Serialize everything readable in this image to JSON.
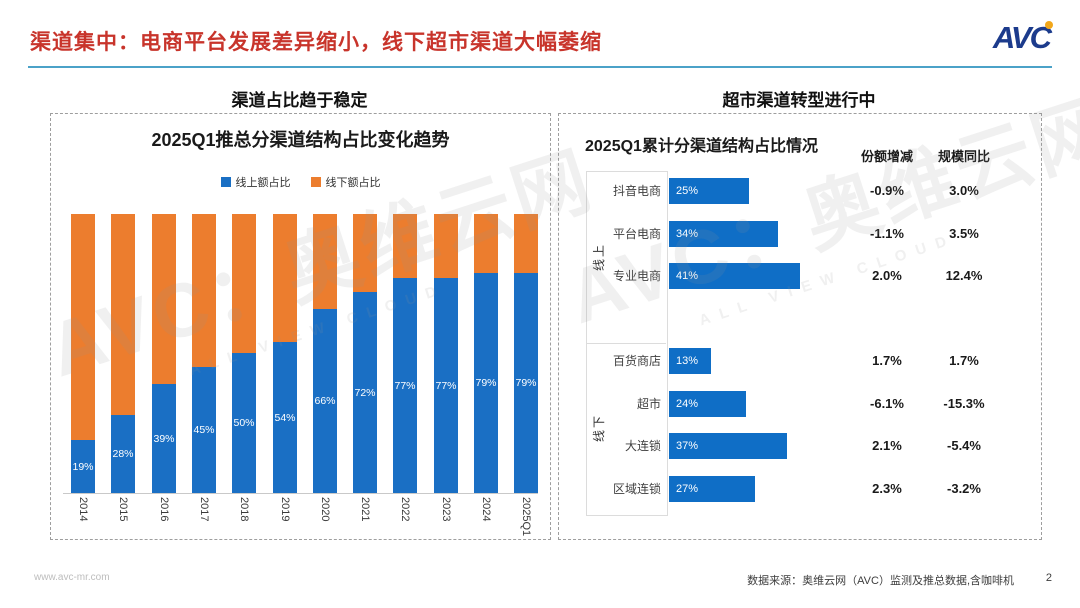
{
  "header": {
    "title": "渠道集中：电商平台发展差异缩小，线下超市渠道大幅萎缩",
    "logo_av": "AV",
    "logo_c": "C"
  },
  "sections": {
    "left": {
      "header": "渠道占比趋于稳定"
    },
    "right": {
      "header": "超市渠道转型进行中"
    }
  },
  "chart_data": [
    {
      "type": "bar",
      "stacked": true,
      "title": "2025Q1推总分渠道结构占比变化趋势",
      "categories": [
        "2014",
        "2015",
        "2016",
        "2017",
        "2018",
        "2019",
        "2020",
        "2021",
        "2022",
        "2023",
        "2024",
        "2025Q1"
      ],
      "series": [
        {
          "name": "线上额占比",
          "color": "#1a6fc4",
          "values": [
            19,
            28,
            39,
            45,
            50,
            54,
            66,
            72,
            77,
            77,
            79,
            79
          ]
        },
        {
          "name": "线下额占比",
          "color": "#ec7d2e",
          "values": [
            81,
            72,
            61,
            55,
            50,
            46,
            34,
            28,
            23,
            23,
            21,
            21
          ]
        }
      ],
      "value_labels": [
        "19%",
        "28%",
        "39%",
        "45%",
        "50%",
        "54%",
        "66%",
        "72%",
        "77%",
        "77%",
        "79%",
        "79%"
      ],
      "ylim": [
        0,
        100
      ],
      "grid": false,
      "legend_position": "top"
    },
    {
      "type": "bar",
      "orientation": "horizontal",
      "title": "2025Q1累计分渠道结构占比情况",
      "columns": [
        "份额增减",
        "规模同比"
      ],
      "bar_color": "#0f6ec6",
      "xlim": [
        0,
        50
      ],
      "groups": [
        {
          "label": "线上",
          "rows": [
            {
              "category": "抖音电商",
              "share_pct": 25,
              "share_label": "25%",
              "share_change": "-0.9%",
              "scale_yoy": "3.0%"
            },
            {
              "category": "平台电商",
              "share_pct": 34,
              "share_label": "34%",
              "share_change": "-1.1%",
              "scale_yoy": "3.5%"
            },
            {
              "category": "专业电商",
              "share_pct": 41,
              "share_label": "41%",
              "share_change": "2.0%",
              "scale_yoy": "12.4%"
            }
          ]
        },
        {
          "label": "线下",
          "rows": [
            {
              "category": "百货商店",
              "share_pct": 13,
              "share_label": "13%",
              "share_change": "1.7%",
              "scale_yoy": "1.7%"
            },
            {
              "category": "超市",
              "share_pct": 24,
              "share_label": "24%",
              "share_change": "-6.1%",
              "scale_yoy": "-15.3%"
            },
            {
              "category": "大连锁",
              "share_pct": 37,
              "share_label": "37%",
              "share_change": "2.1%",
              "scale_yoy": "-5.4%"
            },
            {
              "category": "区域连锁",
              "share_pct": 27,
              "share_label": "27%",
              "share_change": "2.3%",
              "scale_yoy": "-3.2%"
            }
          ]
        }
      ]
    }
  ],
  "watermark": {
    "main": "AVC：奥维云网",
    "caption": "ALL VIEW CLOUD"
  },
  "footer": {
    "url": "www.avc-mr.com",
    "source": "数据来源：奥维云网（AVC）监测及推总数据,含咖啡机",
    "page": "2"
  },
  "colors": {
    "title_red": "#c8342b",
    "underline_blue": "#4ba2c8",
    "bar_blue": "#1a6fc4",
    "bar_orange": "#ec7d2e",
    "right_bar_blue": "#0f6ec6",
    "logo_navy": "#1c3b8c",
    "logo_dot_orange": "#f2a71b"
  }
}
